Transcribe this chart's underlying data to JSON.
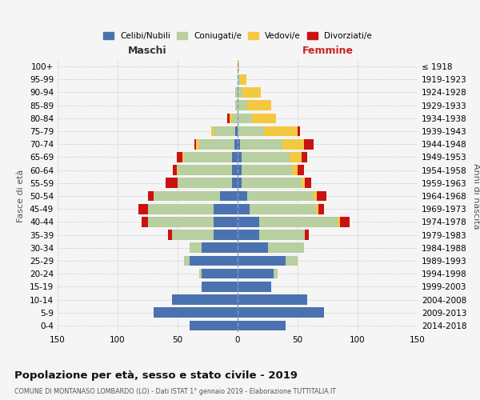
{
  "age_groups": [
    "0-4",
    "5-9",
    "10-14",
    "15-19",
    "20-24",
    "25-29",
    "30-34",
    "35-39",
    "40-44",
    "45-49",
    "50-54",
    "55-59",
    "60-64",
    "65-69",
    "70-74",
    "75-79",
    "80-84",
    "85-89",
    "90-94",
    "95-99",
    "100+"
  ],
  "birth_years": [
    "2014-2018",
    "2009-2013",
    "2004-2008",
    "1999-2003",
    "1994-1998",
    "1989-1993",
    "1984-1988",
    "1979-1983",
    "1974-1978",
    "1969-1973",
    "1964-1968",
    "1959-1963",
    "1954-1958",
    "1949-1953",
    "1944-1948",
    "1939-1943",
    "1934-1938",
    "1929-1933",
    "1924-1928",
    "1919-1923",
    "≤ 1918"
  ],
  "maschi": {
    "celibi": [
      40,
      70,
      55,
      30,
      30,
      40,
      30,
      20,
      20,
      20,
      15,
      5,
      5,
      5,
      3,
      2,
      0,
      0,
      0,
      0,
      0
    ],
    "coniugati": [
      0,
      0,
      0,
      0,
      2,
      5,
      10,
      35,
      55,
      55,
      55,
      45,
      45,
      40,
      30,
      18,
      5,
      2,
      2,
      0,
      0
    ],
    "vedovi": [
      0,
      0,
      0,
      0,
      0,
      0,
      0,
      0,
      0,
      0,
      0,
      0,
      1,
      1,
      2,
      2,
      2,
      0,
      0,
      0,
      0
    ],
    "divorziati": [
      0,
      0,
      0,
      0,
      0,
      0,
      0,
      3,
      5,
      8,
      5,
      10,
      3,
      5,
      1,
      0,
      2,
      0,
      0,
      0,
      0
    ]
  },
  "femmine": {
    "nubili": [
      40,
      72,
      58,
      28,
      30,
      40,
      25,
      18,
      18,
      10,
      8,
      3,
      3,
      3,
      2,
      0,
      0,
      0,
      0,
      0,
      0
    ],
    "coniugate": [
      0,
      0,
      0,
      0,
      3,
      10,
      30,
      38,
      65,
      55,
      55,
      50,
      42,
      40,
      35,
      22,
      12,
      8,
      4,
      2,
      0
    ],
    "vedove": [
      0,
      0,
      0,
      0,
      0,
      0,
      0,
      0,
      2,
      2,
      3,
      3,
      5,
      10,
      18,
      28,
      20,
      20,
      15,
      5,
      1
    ],
    "divorziate": [
      0,
      0,
      0,
      0,
      0,
      0,
      0,
      3,
      8,
      5,
      8,
      5,
      5,
      5,
      8,
      2,
      0,
      0,
      0,
      0,
      0
    ]
  },
  "colors": {
    "celibi": "#4b72b0",
    "coniugati": "#b8cfa0",
    "vedovi": "#f5c842",
    "divorziati": "#cc1111"
  },
  "xlim": 150,
  "title": "Popolazione per età, sesso e stato civile - 2019",
  "subtitle": "COMUNE DI MONTANASO LOMBARDO (LO) - Dati ISTAT 1° gennaio 2019 - Elaborazione TUTTITALIA.IT",
  "ylabel_left": "Fasce di età",
  "ylabel_right": "Anni di nascita",
  "xlabel_maschi": "Maschi",
  "xlabel_femmine": "Femmine",
  "background_color": "#f5f5f5",
  "grid_color": "#cccccc"
}
